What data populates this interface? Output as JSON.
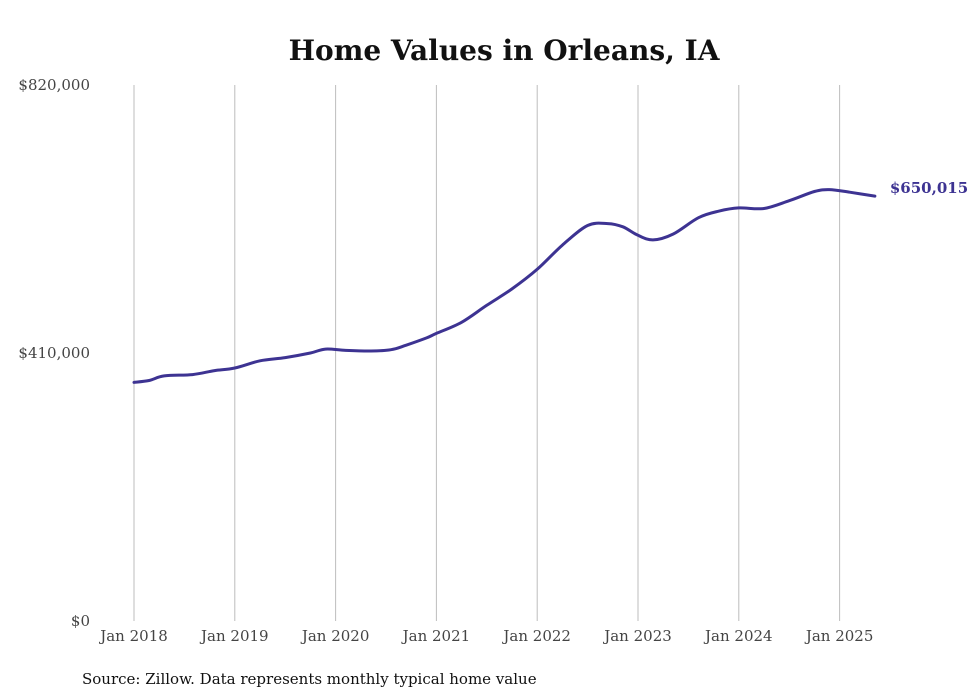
{
  "chart_data": {
    "type": "line",
    "title": "Home Values in Orleans, IA",
    "source": "Source: Zillow. Data represents monthly typical home value",
    "xlabel": "",
    "ylabel": "",
    "ylim": [
      0,
      820000
    ],
    "y_ticks": [
      {
        "value": 0,
        "label": "$0"
      },
      {
        "value": 410000,
        "label": "$410,000"
      },
      {
        "value": 820000,
        "label": "$820,000"
      }
    ],
    "x_ticks": [
      {
        "value": 2018.0,
        "label": "Jan 2018"
      },
      {
        "value": 2019.0,
        "label": "Jan 2019"
      },
      {
        "value": 2020.0,
        "label": "Jan 2020"
      },
      {
        "value": 2021.0,
        "label": "Jan 2021"
      },
      {
        "value": 2022.0,
        "label": "Jan 2022"
      },
      {
        "value": 2023.0,
        "label": "Jan 2023"
      },
      {
        "value": 2024.0,
        "label": "Jan 2024"
      },
      {
        "value": 2025.0,
        "label": "Jan 2025"
      }
    ],
    "grid": "vertical",
    "line_color": "#3d3392",
    "end_label": "$650,015",
    "series": [
      {
        "values": [
          [
            2018.0,
            365000
          ],
          [
            2018.15,
            368000
          ],
          [
            2018.3,
            375000
          ],
          [
            2018.58,
            377000
          ],
          [
            2018.8,
            383000
          ],
          [
            2019.0,
            387000
          ],
          [
            2019.25,
            398000
          ],
          [
            2019.5,
            403000
          ],
          [
            2019.75,
            410000
          ],
          [
            2019.9,
            416000
          ],
          [
            2020.1,
            414000
          ],
          [
            2020.35,
            413000
          ],
          [
            2020.55,
            415000
          ],
          [
            2020.7,
            422000
          ],
          [
            2020.9,
            433000
          ],
          [
            2021.0,
            440000
          ],
          [
            2021.25,
            457000
          ],
          [
            2021.5,
            483000
          ],
          [
            2021.75,
            508000
          ],
          [
            2022.0,
            538000
          ],
          [
            2022.25,
            575000
          ],
          [
            2022.5,
            605000
          ],
          [
            2022.7,
            608000
          ],
          [
            2022.85,
            603000
          ],
          [
            2023.0,
            590000
          ],
          [
            2023.15,
            583000
          ],
          [
            2023.35,
            592000
          ],
          [
            2023.6,
            617000
          ],
          [
            2023.8,
            627000
          ],
          [
            2024.0,
            632000
          ],
          [
            2024.25,
            631000
          ],
          [
            2024.5,
            643000
          ],
          [
            2024.75,
            657000
          ],
          [
            2024.9,
            660000
          ],
          [
            2025.1,
            656000
          ],
          [
            2025.35,
            650015
          ]
        ]
      }
    ]
  }
}
